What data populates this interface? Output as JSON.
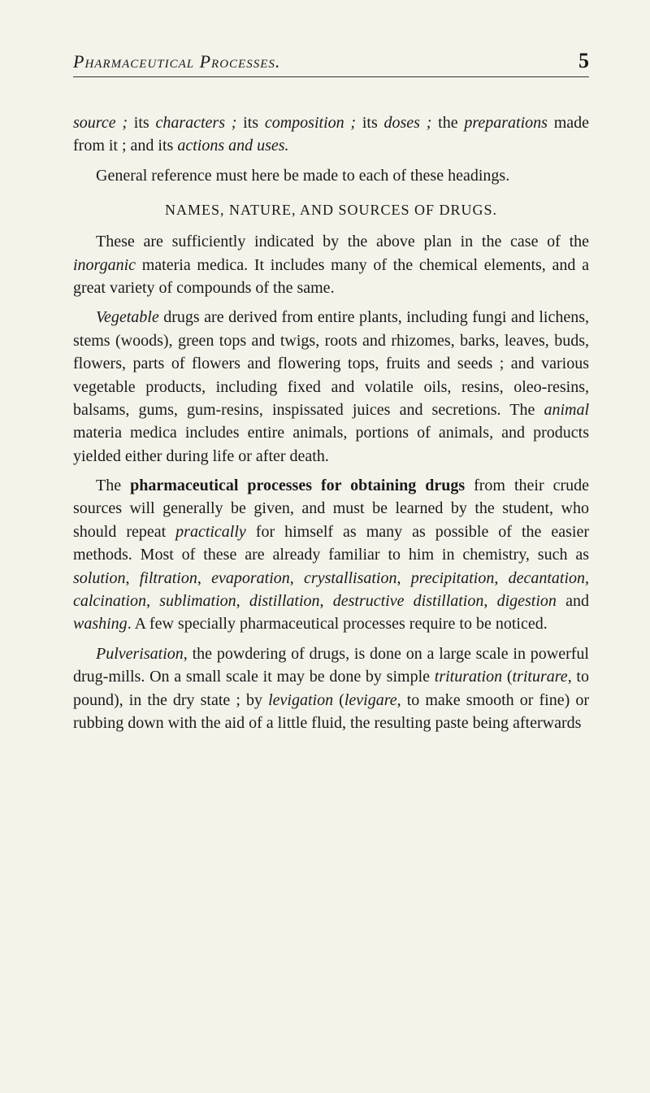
{
  "page": {
    "header_title": "Pharmaceutical Processes.",
    "page_number": "5"
  },
  "paragraphs": {
    "p1_part1": "source ;",
    "p1_part2": " its ",
    "p1_part3": "characters ;",
    "p1_part4": " its ",
    "p1_part5": "composition ;",
    "p1_part6": " its ",
    "p1_part7": "doses ;",
    "p1_part8": " the ",
    "p1_part9": "preparations",
    "p1_part10": " made from it ; and its ",
    "p1_part11": "actions and uses.",
    "p2": "General reference must here be made to each of these headings.",
    "section_heading": "NAMES, NATURE, AND SOURCES OF DRUGS.",
    "p3_part1": "These are sufficiently indicated by the above plan in the case of the ",
    "p3_part2": "inorganic",
    "p3_part3": " materia medica. It includes many of the chemical elements, and a great variety of compounds of the same.",
    "p4_part1": "Vegetable",
    "p4_part2": " drugs are derived from entire plants, including fungi and lichens, stems (woods), green tops and twigs, roots and rhizomes, barks, leaves, buds, flowers, parts of flowers and flowering tops, fruits and seeds ; and various vegetable products, including fixed and volatile oils, resins, oleo-resins, balsams, gums, gum-resins, inspissated juices and secretions. The ",
    "p4_part3": "animal",
    "p4_part4": " materia medica includes entire animals, por­tions of animals, and products yielded either during life or after death.",
    "p5_part1": "The ",
    "p5_part2": "pharmaceutical processes for obtaining drugs",
    "p5_part3": " from their crude sources will generally be given, and must be learned by the student, who should repeat ",
    "p5_part4": "practically",
    "p5_part5": " for himself as many as possible of the easier methods. Most of these are already familiar to him in chemistry, such as ",
    "p5_part6": "solution",
    "p5_part7": ", ",
    "p5_part8": "filtration",
    "p5_part9": ", ",
    "p5_part10": "evaporation",
    "p5_part11": ", ",
    "p5_part12": "crystallisation",
    "p5_part13": ", ",
    "p5_part14": "precipitation",
    "p5_part15": ", ",
    "p5_part16": "decantation",
    "p5_part17": ", ",
    "p5_part18": "calcination",
    "p5_part19": ", ",
    "p5_part20": "sublimation",
    "p5_part21": ", ",
    "p5_part22": "distillation",
    "p5_part23": ", ",
    "p5_part24": "destructive distillation",
    "p5_part25": ", ",
    "p5_part26": "digestion",
    "p5_part27": " and ",
    "p5_part28": "washing",
    "p5_part29": ". A few specially pharmaceutical processes require to be noticed.",
    "p6_part1": "Pulverisation",
    "p6_part2": ", the powdering of drugs, is done on a large scale in powerful drug-mills. On a small scale it may be done by simple ",
    "p6_part3": "trituration",
    "p6_part4": " (",
    "p6_part5": "triturare",
    "p6_part6": ", to pound), in the dry state ; by ",
    "p6_part7": "levigation",
    "p6_part8": " (",
    "p6_part9": "levigare",
    "p6_part10": ", to make smooth or fine) or rubbing down with the aid of a little fluid, the resulting paste being afterwards"
  }
}
